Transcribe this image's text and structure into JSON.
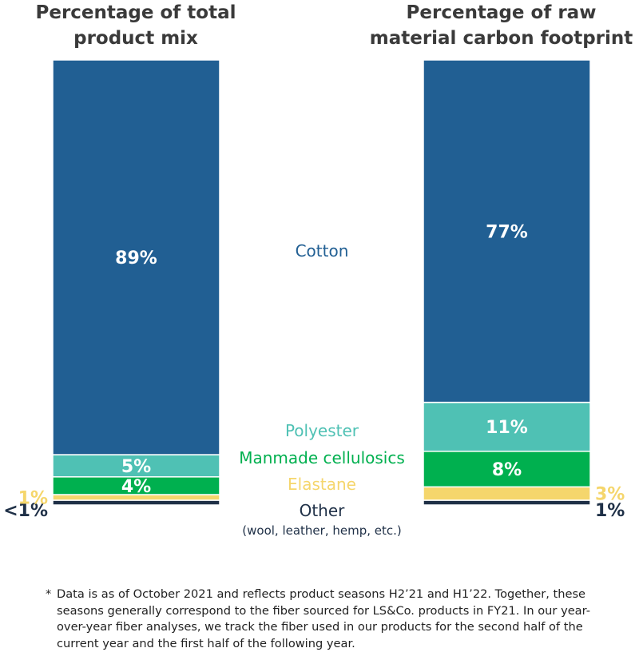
{
  "chart_data": {
    "type": "bar",
    "stacked": true,
    "stack_order_bottom_up": [
      "Other",
      "Elastane",
      "Manmade cellulosics",
      "Polyester",
      "Cotton"
    ],
    "categories": [
      "Cotton",
      "Polyester",
      "Manmade cellulosics",
      "Elastane",
      "Other"
    ],
    "category_colors": {
      "Cotton": "#215f93",
      "Polyester": "#4fc1b4",
      "Manmade cellulosics": "#00b04f",
      "Elastane": "#f5d66c",
      "Other": "#1f3047"
    },
    "legend_sublabel": {
      "Other": "(wool, leather, hemp, etc.)"
    },
    "bars": [
      {
        "title": "Percentage of total product mix",
        "values": [
          89,
          5,
          4,
          1,
          1
        ],
        "labels": [
          "89%",
          "5%",
          "4%",
          "1%",
          "<1%"
        ]
      },
      {
        "title": "Percentage of raw material carbon footprint",
        "values": [
          77,
          11,
          8,
          3,
          1
        ],
        "labels": [
          "77%",
          "11%",
          "8%",
          "3%",
          "1%"
        ]
      }
    ],
    "axes_visible": false,
    "grid": false
  },
  "titles": {
    "left_line1": "Percentage of total",
    "left_line2": "product mix",
    "right_line1": "Percentage of raw",
    "right_line2": "material carbon footprint"
  },
  "footnote": {
    "star": "*",
    "text": "Data is as of October 2021 and reflects product seasons H2’21 and H1’22. Together, these seasons generally correspond to the fiber sourced for LS&Co. products in FY21. In our year-over-year fiber analyses, we track the fiber used in our products for the second half of the current year and the first half of the following year."
  }
}
